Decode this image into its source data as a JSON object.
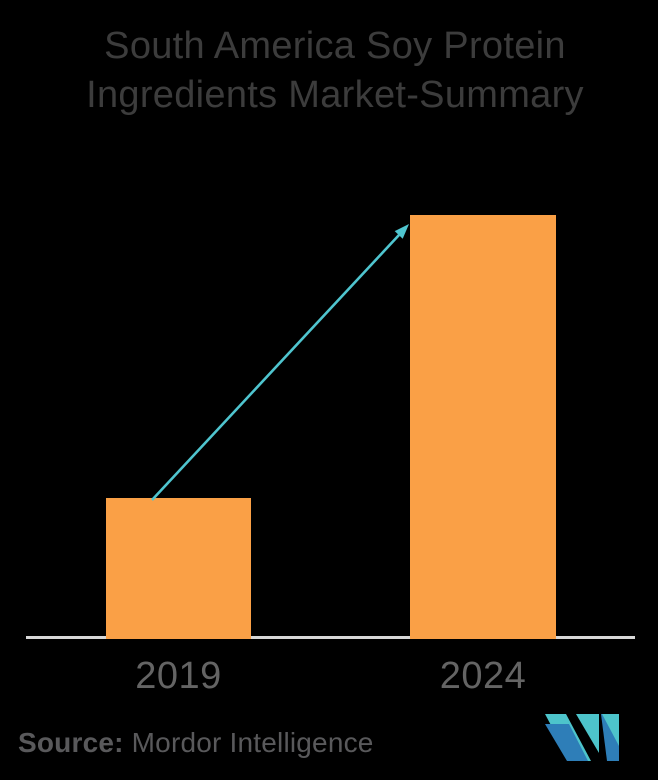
{
  "title": {
    "line1": "South America Soy Protein",
    "line2": "Ingredients Market-Summary"
  },
  "chart_data": {
    "type": "bar",
    "title": "South America Soy Protein Ingredients Market-Summary",
    "categories": [
      "2019",
      "2024"
    ],
    "values": [
      1,
      3
    ],
    "value_note": "no numeric y-axis shown; 2024 bar is approximately 3x the height of the 2019 bar",
    "ylim": [
      0,
      3
    ],
    "xlabel": "",
    "ylabel": "",
    "grid": false,
    "legend": "none",
    "bar_color": "#FAA046",
    "annotations": [
      {
        "type": "growth-arrow",
        "from": "top of 2019 bar",
        "to": "top of 2024 bar",
        "color": "#4FC5CF"
      }
    ],
    "source": "Mordor Intelligence"
  },
  "source": {
    "label": "Source:",
    "value": "Mordor Intelligence"
  },
  "logo": {
    "name": "mordor-intelligence-logo",
    "teal": "#4DC4CB",
    "blue": "#2E7EB8"
  },
  "colors": {
    "background": "#000000",
    "bar": "#FAA046",
    "arrow": "#4FC5CF",
    "axis_line": "#D8D8D8",
    "title_text": "#3C3C3C",
    "axis_label_text": "#646464",
    "source_text": "#59595B"
  }
}
